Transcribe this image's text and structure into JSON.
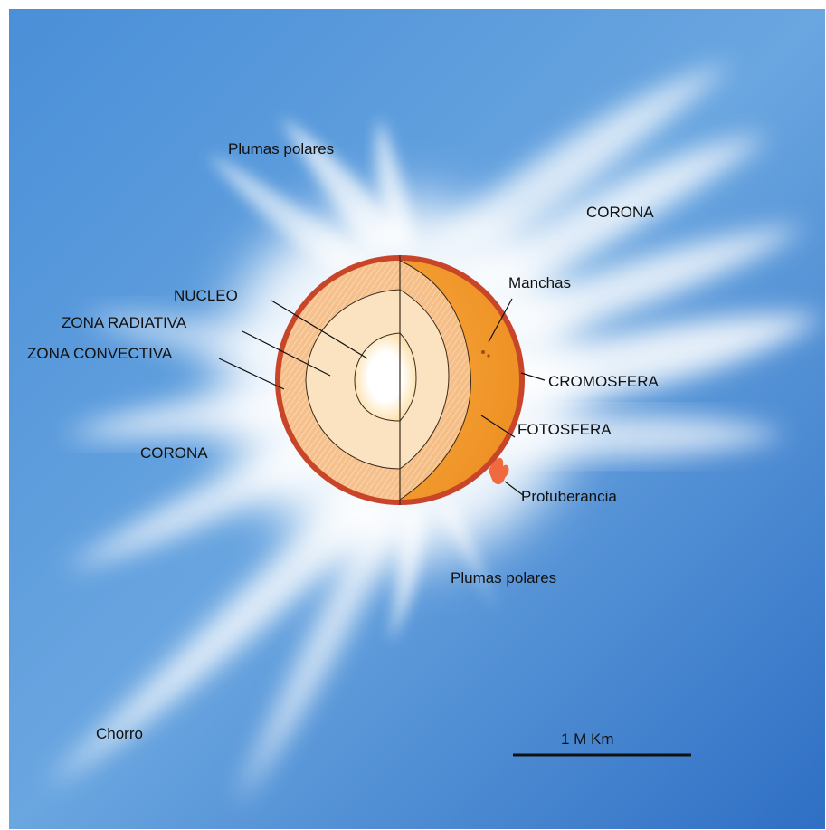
{
  "labels": {
    "plumas_top": "Plumas polares",
    "plumas_bottom": "Plumas polares",
    "corona_right": "CORONA",
    "corona_left": "CORONA",
    "nucleo": "NUCLEO",
    "zona_radiativa": "ZONA RADIATIVA",
    "zona_convectiva": "ZONA CONVECTIVA",
    "manchas": "Manchas",
    "cromosfera": "CROMOSFERA",
    "fotosfera": "FOTOSFERA",
    "protuberancia": "Protuberancia",
    "chorro": "Chorro"
  },
  "scale_bar": {
    "label": "1 M Km"
  },
  "colors": {
    "sky_top": "#4a8fd8",
    "sky_mid": "#6aa6e0",
    "sky_bottom": "#2f6fc4",
    "chromosphere": "#c8452a",
    "photosphere": "#f19a2e",
    "convective": "#f7c896",
    "radiative": "#fbe6c4",
    "core": "#ffffff",
    "prominence": "#f06a40"
  }
}
